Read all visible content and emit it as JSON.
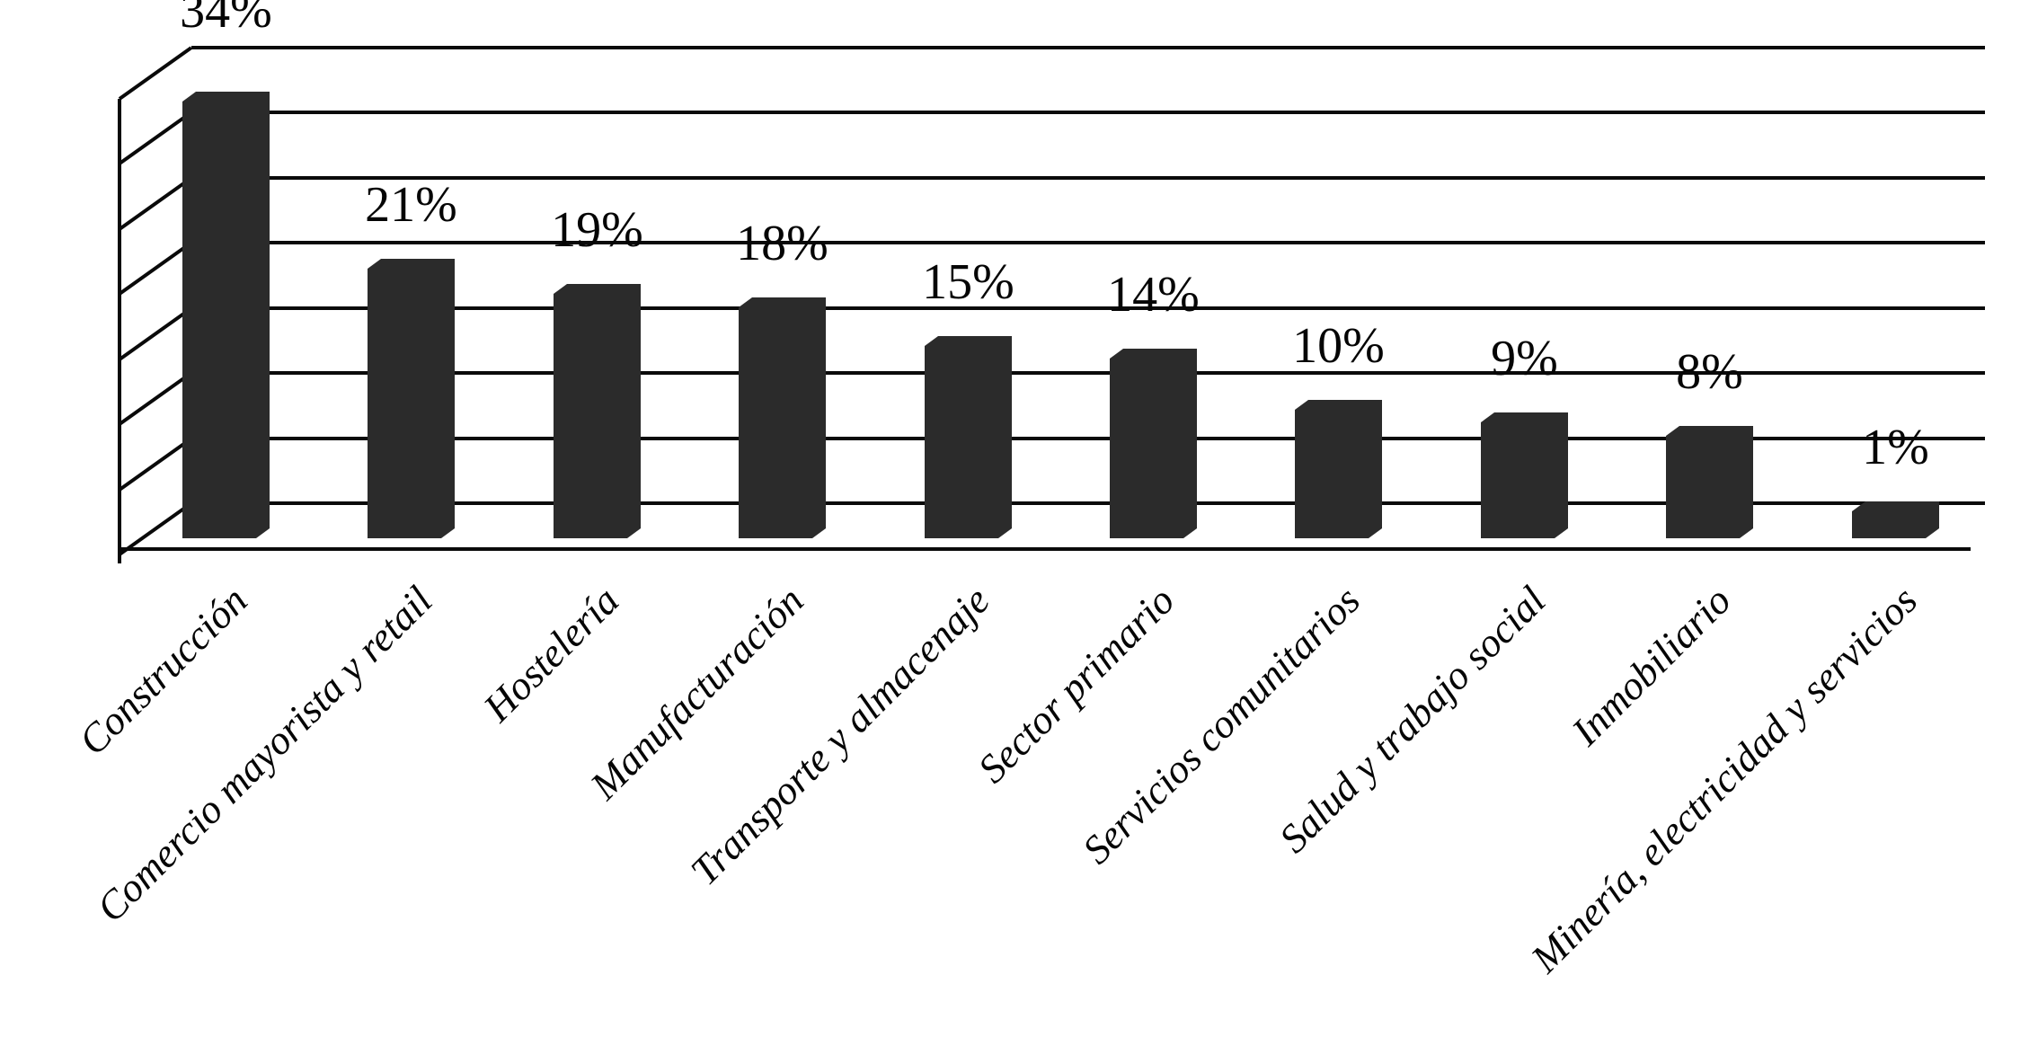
{
  "chart_data": {
    "type": "bar",
    "style": "3d-column-monochrome",
    "title": "",
    "xlabel": "",
    "ylabel": "",
    "categories": [
      "Construcción",
      "Comercio mayorista y retail",
      "Hostelería",
      "Manufacturación",
      "Transporte y almacenaje",
      "Sector primario",
      "Servicios comunitarios",
      "Salud y trabajo social",
      "Inmobiliario",
      "Minería, electricidad y servicios"
    ],
    "values": [
      34,
      21,
      19,
      18,
      15,
      14,
      10,
      9,
      8,
      1
    ],
    "value_labels": [
      "34%",
      "21%",
      "19%",
      "18%",
      "15%",
      "14%",
      "10%",
      "9%",
      "8%",
      "1%"
    ],
    "ylim": [
      0,
      35
    ],
    "gridline_interval_pct": 5,
    "gridline_count": 8,
    "grid": "horizontal-backwall",
    "legend": "none",
    "bar_color": "#2b2b2b",
    "line_color": "#0a0a0a",
    "text_color": "#050505",
    "background": "#ffffff"
  }
}
